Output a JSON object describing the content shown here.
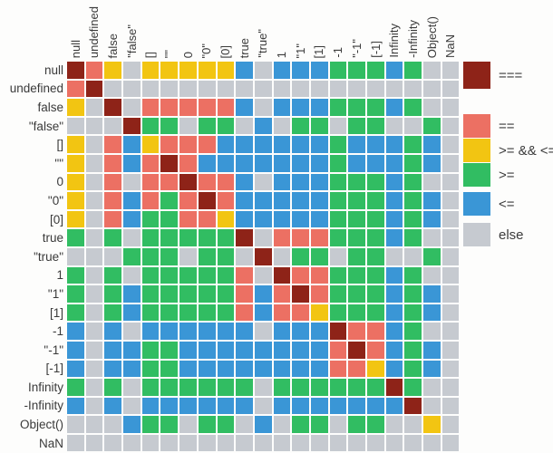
{
  "colors": {
    "R": "#8E2318",
    "S": "#EC7063",
    "Y": "#F2C512",
    "G": "#31BD62",
    "B": "#3A96D6",
    "E": "#C6CAD0",
    "label_text": "#3A3A3A",
    "background": "#FDFDFC"
  },
  "legend": [
    {
      "code": "R",
      "label": "==="
    },
    {
      "code": "S",
      "label": "=="
    },
    {
      "code": "Y",
      "label": ">= && <="
    },
    {
      "code": "G",
      "label": ">="
    },
    {
      "code": "B",
      "label": "<="
    },
    {
      "code": "E",
      "label": "else"
    }
  ],
  "chart_data": {
    "type": "heatmap",
    "x_labels": [
      "null",
      "undefined",
      "false",
      "\"false\"",
      "[]",
      "\"\"",
      "0",
      "\"0\"",
      "[0]",
      "true",
      "\"true\"",
      "1",
      "\"1\"",
      "[1]",
      "-1",
      "\"-1\"",
      "[-1]",
      "Infinity",
      "-Infinity",
      "Object()",
      "NaN"
    ],
    "y_labels": [
      "null",
      "undefined",
      "false",
      "\"false\"",
      "[]",
      "\"\"",
      "0",
      "\"0\"",
      "[0]",
      "true",
      "\"true\"",
      "1",
      "\"1\"",
      "[1]",
      "-1",
      "\"-1\"",
      "[-1]",
      "Infinity",
      "-Infinity",
      "Object()",
      "NaN"
    ],
    "cell_code_meaning": {
      "R": "===",
      "S": "==",
      "Y": ">= && <=",
      "G": ">=",
      "B": "<=",
      "E": "else"
    },
    "matrix": [
      "RSYEYYYYYBEBBBGGGBGEE",
      "SREEEEEEEEEEEEEEEEEEE",
      "YERESSSSSBEBBBGGGBGEE",
      "EEERGGEGGEBEGGEGGEEGE",
      "YESBYSSSBBBBBBGBBBGBE",
      "YESBSRSBBBBBBBGBBBGBE",
      "YESESSRSSBEBBBGGGBGEE",
      "YESBSGSRSBBBBBGGGBGBE",
      "YESBGGSSYBBBBBGGGBGBE",
      "GEGEGGGGGRESSSGGGBGEE",
      "EEEGGGEGGEREGGEGGEEGE",
      "GEGEGGGGGSERSSGGGBGEE",
      "GEGBGGGGGSBSRSGGGBGBE",
      "GEGBGGGGGSBSSYGGGBGBE",
      "BEBEBBBBBBEBBBRSSBGEE",
      "BEBBGGBBBBBBBBSRSBGBE",
      "BEBBGGBBBBBBBBSSYBGBE",
      "GEGEGGGGGGEGGGGGGRGEE",
      "BEBEBBBBBBEBBBBBBBREE",
      "EEEBGGEGGEBEGGEGGEEYE",
      "EEEEEEEEEEEEEEEEEEEEE"
    ]
  }
}
